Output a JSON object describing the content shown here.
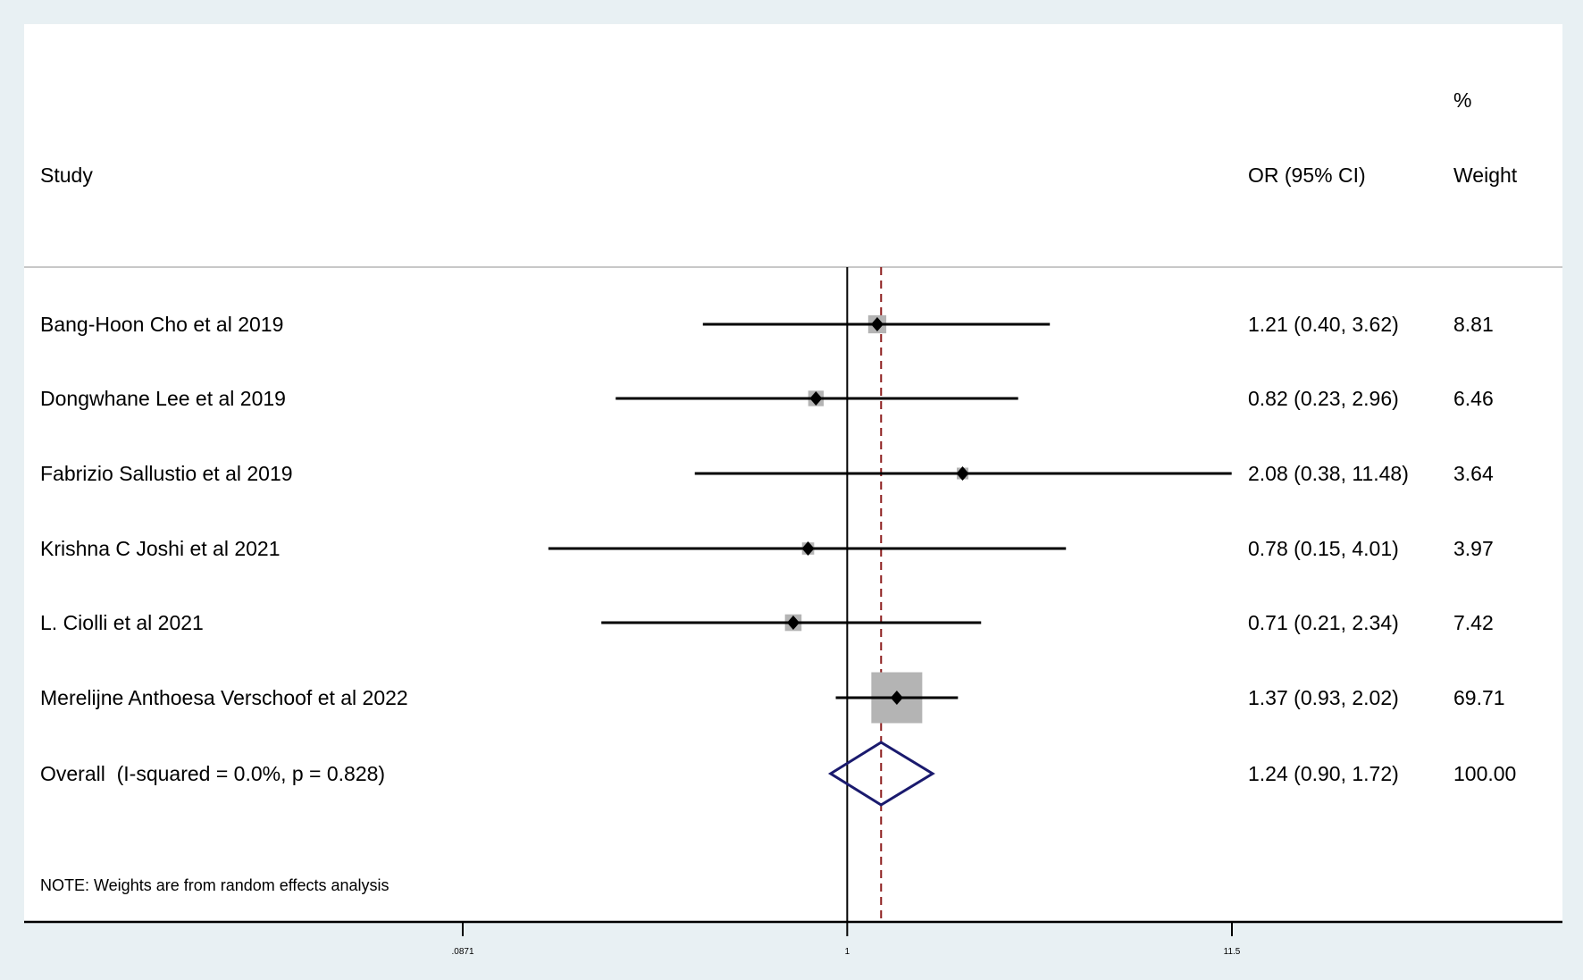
{
  "chart_data": {
    "type": "forest",
    "scale": "log",
    "xlim": [
      0.0871,
      11.5
    ],
    "x_ticks": [
      ".0871",
      "1",
      "11.5"
    ],
    "x_tick_values": [
      0.0871,
      1,
      11.5
    ],
    "reference_line": 1,
    "overall_line": 1.24,
    "headers": {
      "study": "Study",
      "or": "OR (95% CI)",
      "weight_top": "%",
      "weight": "Weight"
    },
    "studies": [
      {
        "name": "Bang-Hoon Cho et al 2019",
        "or": 1.21,
        "lo": 0.4,
        "hi": 3.62,
        "weight": 8.81,
        "label": "1.21 (0.40, 3.62)",
        "weight_label": "8.81"
      },
      {
        "name": "Dongwhane Lee et al 2019",
        "or": 0.82,
        "lo": 0.23,
        "hi": 2.96,
        "weight": 6.46,
        "label": "0.82 (0.23, 2.96)",
        "weight_label": "6.46"
      },
      {
        "name": "Fabrizio Sallustio et al 2019",
        "or": 2.08,
        "lo": 0.38,
        "hi": 11.48,
        "weight": 3.64,
        "label": "2.08 (0.38, 11.48)",
        "weight_label": "3.64"
      },
      {
        "name": "Krishna C Joshi et al 2021",
        "or": 0.78,
        "lo": 0.15,
        "hi": 4.01,
        "weight": 3.97,
        "label": "0.78 (0.15, 4.01)",
        "weight_label": "3.97"
      },
      {
        "name": "L. Ciolli et al 2021",
        "or": 0.71,
        "lo": 0.21,
        "hi": 2.34,
        "weight": 7.42,
        "label": "0.71 (0.21, 2.34)",
        "weight_label": "7.42"
      },
      {
        "name": "Merelijne Anthoesa Verschoof et al 2022",
        "or": 1.37,
        "lo": 0.93,
        "hi": 2.02,
        "weight": 69.71,
        "label": "1.37 (0.93, 2.02)",
        "weight_label": "69.71"
      }
    ],
    "overall": {
      "name": "Overall  (I-squared = 0.0%, p = 0.828)",
      "or": 1.24,
      "lo": 0.9,
      "hi": 1.72,
      "weight": 100.0,
      "label": "1.24 (0.90, 1.72)",
      "weight_label": "100.00"
    },
    "note": "NOTE: Weights are from random effects analysis",
    "colors": {
      "background": "#e8f0f3",
      "panel": "#ffffff",
      "box": "#b4b4b4",
      "diamond": "#1a1a6e",
      "overall_line": "#8b1a1a"
    }
  }
}
